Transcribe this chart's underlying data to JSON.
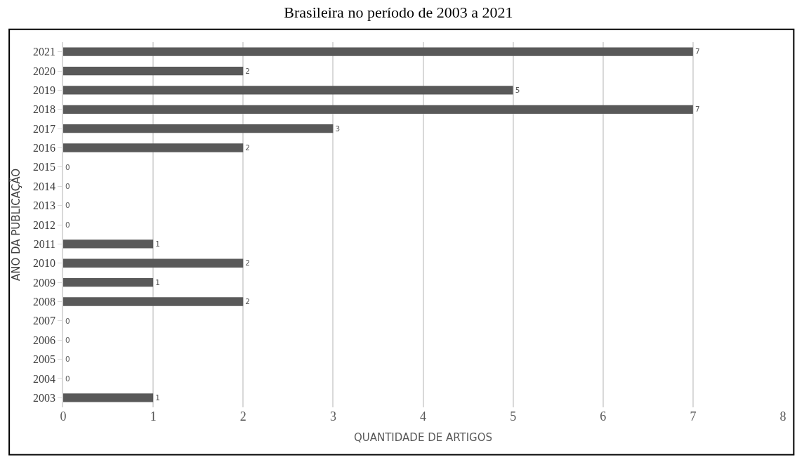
{
  "chart_data": {
    "type": "bar",
    "orientation": "horizontal",
    "title": "Brasileira no período de 2003 a 2021",
    "xlabel": "QUANTIDADE DE ARTIGOS",
    "ylabel": "ANO DA PUBLICAÇÃO",
    "categories": [
      "2021",
      "2020",
      "2019",
      "2018",
      "2017",
      "2016",
      "2015",
      "2014",
      "2013",
      "2012",
      "2011",
      "2010",
      "2009",
      "2008",
      "2007",
      "2006",
      "2005",
      "2004",
      "2003"
    ],
    "values": [
      7,
      2,
      5,
      7,
      3,
      2,
      0,
      0,
      0,
      0,
      1,
      2,
      1,
      2,
      0,
      0,
      0,
      0,
      1
    ],
    "color": "#595959",
    "xlim": [
      0,
      8
    ],
    "xticks": [
      0,
      1,
      2,
      3,
      4,
      5,
      6,
      7,
      8
    ],
    "grid": "x",
    "data_labels": true,
    "legend": false
  }
}
